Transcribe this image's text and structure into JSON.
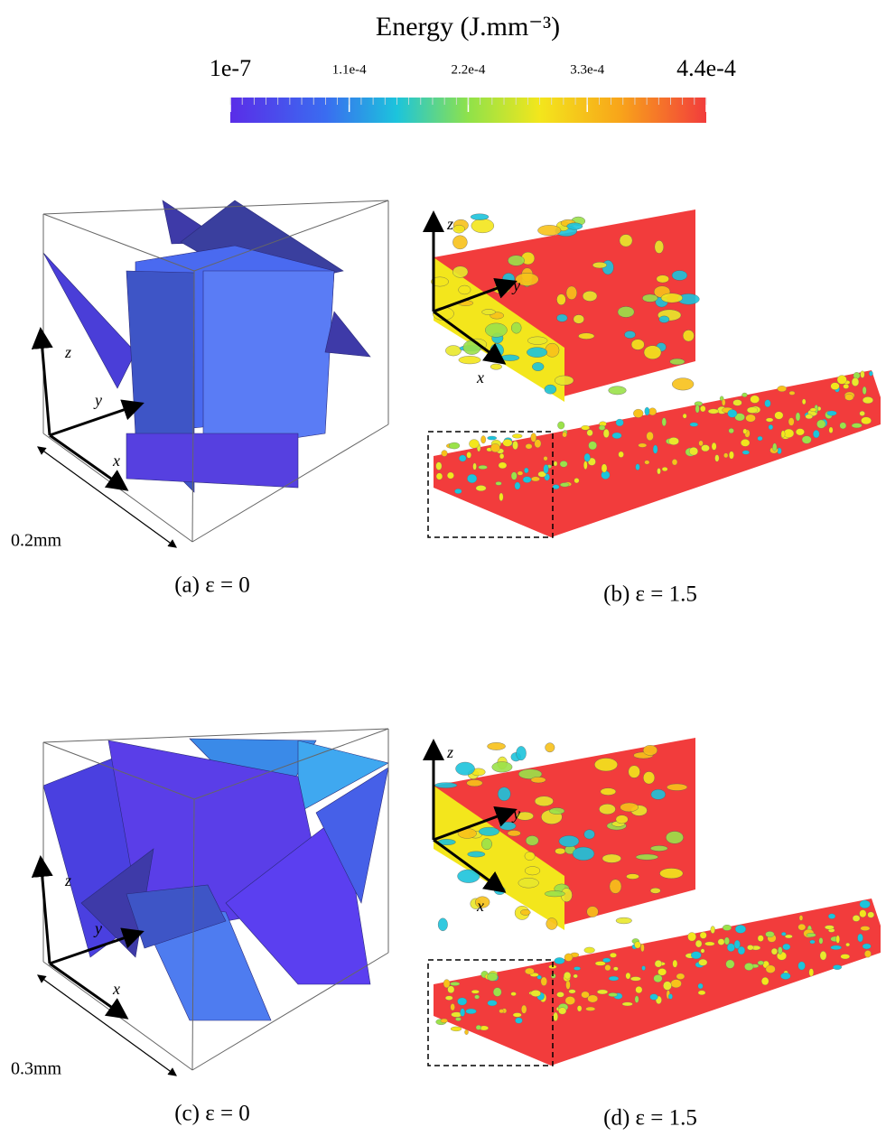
{
  "colorbar": {
    "title": "Energy (J.mm⁻³)",
    "ticks": [
      {
        "value": 1e-07,
        "label": "1e-7"
      },
      {
        "value": 0.00011,
        "label": "1.1e-4"
      },
      {
        "value": 0.00022,
        "label": "2.2e-4"
      },
      {
        "value": 0.00033,
        "label": "3.3e-4"
      },
      {
        "value": 0.00044,
        "label": "4.4e-4"
      }
    ]
  },
  "panels": [
    {
      "caption": "(a) ε = 0",
      "scale": "0.2mm",
      "axes": {
        "z": "z⃗",
        "y": "y⃗",
        "x": "x⃗"
      }
    },
    {
      "caption": "(b) ε = 1.5",
      "axes": {
        "z": "z⃗",
        "y": "y⃗",
        "x": "x⃗"
      }
    },
    {
      "caption": "(c) ε = 0",
      "scale": "0.3mm",
      "axes": {
        "z": "z⃗",
        "y": "y⃗",
        "x": "x⃗"
      }
    },
    {
      "caption": "(d) ε = 1.5",
      "axes": {
        "z": "z⃗",
        "y": "y⃗",
        "x": "x⃗"
      }
    }
  ]
}
